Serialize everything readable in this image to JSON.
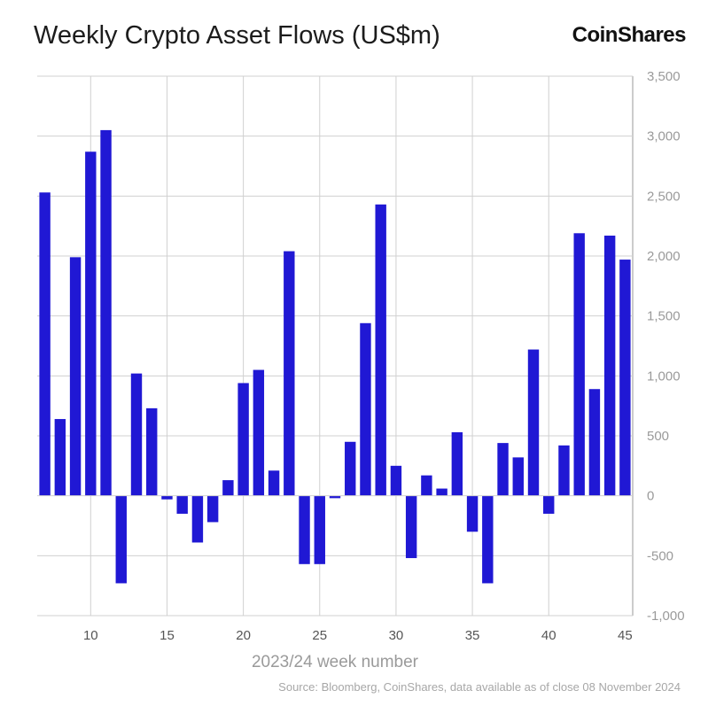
{
  "header": {
    "title": "Weekly Crypto Asset Flows (US$m)",
    "brand": "CoinShares"
  },
  "footer": {
    "source": "Source: Bloomberg, CoinShares, data available as of close 08 November 2024"
  },
  "colors": {
    "bar": "#2018d4",
    "grid": "#d0d0d0",
    "axis": "#9a9a9a"
  },
  "chart_data": {
    "type": "bar",
    "title": "Weekly Crypto Asset Flows (US$m)",
    "xlabel": "2023/24 week number",
    "ylabel": "",
    "ylim": [
      -1000,
      3500
    ],
    "xlim": [
      6.5,
      45.5
    ],
    "grid": true,
    "y_axis_position": "right",
    "y_ticks": [
      -1000,
      -500,
      0,
      500,
      1000,
      1500,
      2000,
      2500,
      3000,
      3500
    ],
    "y_tick_labels": [
      "-1,000",
      "-500",
      "0",
      "500",
      "1,000",
      "1,500",
      "2,000",
      "2,500",
      "3,000",
      "3,500"
    ],
    "x_ticks": [
      10,
      15,
      20,
      25,
      30,
      35,
      40,
      45
    ],
    "x_tick_labels": [
      "10",
      "15",
      "20",
      "25",
      "30",
      "35",
      "40",
      "45"
    ],
    "categories": [
      7,
      8,
      9,
      10,
      11,
      12,
      13,
      14,
      15,
      16,
      17,
      18,
      19,
      20,
      21,
      22,
      23,
      24,
      25,
      26,
      27,
      28,
      29,
      30,
      31,
      32,
      33,
      34,
      35,
      36,
      37,
      38,
      39,
      40,
      41,
      42,
      43,
      44,
      45
    ],
    "values": [
      2530,
      640,
      1990,
      2870,
      3050,
      -730,
      1020,
      730,
      -30,
      -150,
      -390,
      -220,
      130,
      940,
      1050,
      210,
      2040,
      -570,
      -570,
      -20,
      450,
      1440,
      2430,
      250,
      -520,
      170,
      60,
      530,
      -300,
      -730,
      440,
      320,
      1220,
      -150,
      420,
      2190,
      890,
      2170,
      1970
    ]
  }
}
